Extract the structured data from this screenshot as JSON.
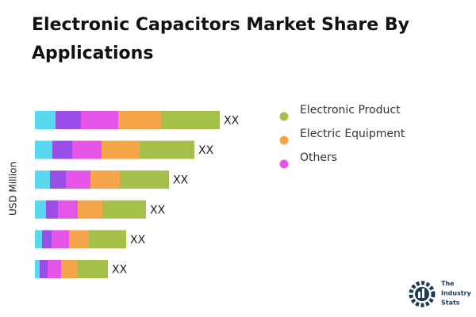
{
  "chart_data": {
    "type": "stacked-bar-horizontal",
    "title": "Electronic Capacitors Market Share By Applications",
    "y_axis_label": "USD Million",
    "categories": [
      null,
      null,
      null,
      null,
      null,
      null
    ],
    "series": [
      {
        "color": "#5ad8f0",
        "values": [
          26,
          22,
          19,
          14,
          9,
          6
        ]
      },
      {
        "color": "#9b4de8",
        "values": [
          32,
          25,
          20,
          15,
          12,
          10
        ]
      },
      {
        "name": "Others",
        "color": "#e455e8",
        "values": [
          47,
          37,
          31,
          25,
          22,
          17
        ]
      },
      {
        "name": "Electric Equipment",
        "color": "#f4a54a",
        "values": [
          54,
          48,
          37,
          31,
          25,
          20
        ]
      },
      {
        "name": "Electronic Product",
        "color": "#a4c04a",
        "values": [
          74,
          69,
          62,
          55,
          47,
          39
        ]
      }
    ],
    "bar_labels": [
      "XX",
      "XX",
      "XX",
      "XX",
      "XX",
      "XX"
    ]
  },
  "logo": {
    "lines": [
      "The",
      "Industry",
      "Stats"
    ]
  }
}
